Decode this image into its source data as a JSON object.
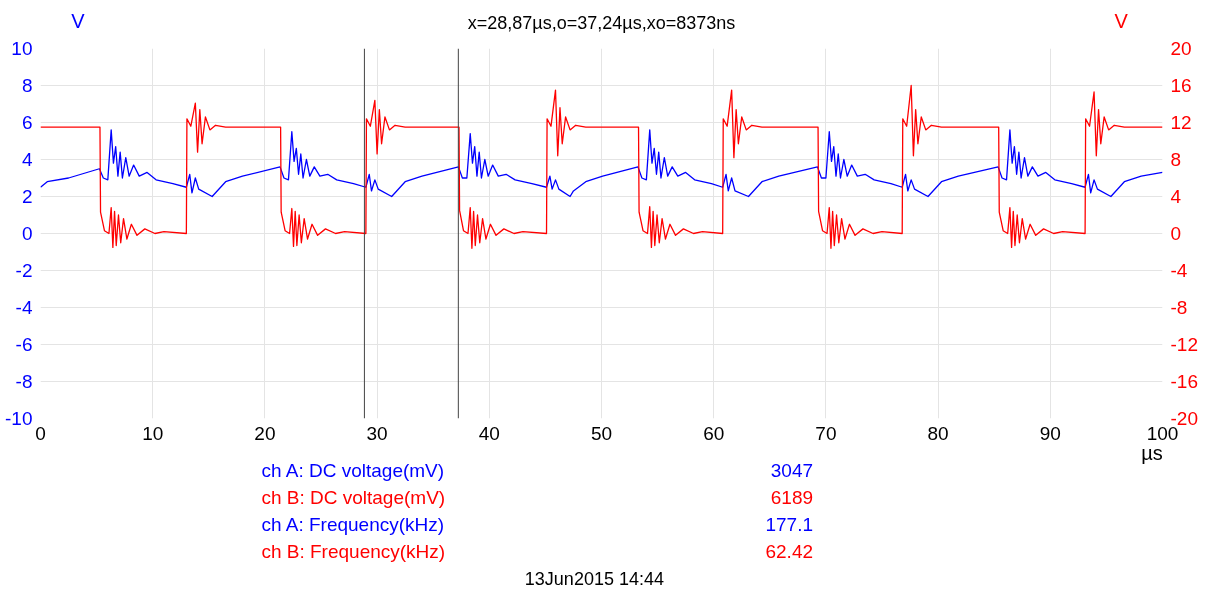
{
  "chart_data": {
    "type": "line",
    "title": "x=28,87µs,o=37,24µs,xo=8373ns",
    "xlabel": "µs",
    "ylabel": "V",
    "y2label": "V",
    "xlim": [
      0,
      100
    ],
    "xticks": [
      0,
      10,
      20,
      30,
      40,
      50,
      60,
      70,
      80,
      90,
      100
    ],
    "ylim": [
      -10,
      10
    ],
    "yticks": [
      -10,
      -8,
      -6,
      -4,
      -2,
      0,
      2,
      4,
      6,
      8,
      10
    ],
    "y2lim": [
      -20,
      20
    ],
    "y2ticks": [
      -20,
      -16,
      -12,
      -8,
      -4,
      0,
      4,
      8,
      12,
      16,
      20
    ],
    "grid": true,
    "line_style": "solid",
    "marker": "none",
    "ref_lines": [
      {
        "axis": "x",
        "value": 28.87,
        "label": null,
        "color": "#444444"
      },
      {
        "axis": "x",
        "value": 37.24,
        "label": null,
        "color": "#444444"
      }
    ],
    "series": [
      {
        "color": "#0000ff",
        "x": [
          0,
          0.6,
          2.5,
          5.25,
          5.6,
          6.0,
          6.3,
          6.5,
          6.7,
          6.9,
          7.1,
          7.3,
          7.6,
          7.9,
          8.3,
          8.8,
          9.5,
          10.3,
          11.8,
          13.0,
          13.3,
          13.5,
          13.8,
          14.1,
          15.3,
          16.5,
          18.0,
          21.35,
          21.7,
          22.1,
          22.4,
          22.6,
          22.8,
          23.0,
          23.2,
          23.4,
          23.7,
          24.0,
          24.4,
          24.9,
          25.6,
          26.4,
          27.9,
          29.0,
          29.3,
          29.5,
          29.8,
          30.1,
          31.3,
          32.5,
          34.0,
          37.25,
          37.6,
          38.0,
          38.3,
          38.5,
          38.7,
          38.9,
          39.1,
          39.3,
          39.6,
          39.9,
          40.3,
          40.8,
          41.5,
          42.3,
          43.8,
          45.1,
          45.4,
          45.6,
          45.9,
          46.2,
          47.2,
          47.5,
          48.6,
          50.1,
          53.25,
          53.6,
          54.0,
          54.3,
          54.5,
          54.7,
          54.9,
          55.1,
          55.3,
          55.6,
          55.9,
          56.3,
          56.8,
          57.5,
          58.3,
          59.8,
          60.8,
          61.1,
          61.3,
          61.6,
          61.9,
          63.1,
          64.3,
          65.8,
          69.25,
          69.6,
          70.0,
          70.3,
          70.5,
          70.7,
          70.9,
          71.1,
          71.3,
          71.6,
          71.9,
          72.3,
          72.8,
          73.5,
          74.3,
          75.8,
          76.8,
          77.1,
          77.3,
          77.6,
          77.9,
          79.1,
          80.3,
          81.8,
          85.35,
          85.7,
          86.1,
          86.4,
          86.6,
          86.8,
          87.0,
          87.2,
          87.4,
          87.7,
          88.0,
          88.4,
          88.9,
          89.6,
          90.4,
          91.9,
          93.1,
          93.4,
          93.6,
          93.9,
          94.2,
          95.4,
          96.6,
          98.1,
          100
        ],
        "values": [
          2.5,
          2.8,
          3.0,
          3.5,
          3.0,
          2.9,
          5.6,
          3.8,
          4.7,
          3.1,
          4.4,
          3.0,
          4.1,
          3.1,
          3.7,
          3.1,
          3.3,
          2.9,
          2.7,
          2.5,
          3.2,
          2.2,
          3.0,
          2.4,
          2.0,
          2.8,
          3.1,
          3.6,
          3.0,
          2.9,
          5.5,
          3.9,
          4.6,
          3.2,
          4.3,
          3.0,
          4.0,
          3.1,
          3.6,
          3.1,
          3.2,
          2.9,
          2.7,
          2.5,
          3.2,
          2.3,
          2.9,
          2.4,
          2.0,
          2.8,
          3.1,
          3.6,
          3.0,
          3.0,
          5.4,
          3.8,
          4.7,
          3.1,
          4.4,
          3.0,
          4.0,
          3.1,
          3.7,
          3.1,
          3.2,
          2.9,
          2.7,
          2.5,
          3.1,
          2.4,
          2.9,
          2.4,
          2.0,
          2.3,
          2.8,
          3.1,
          3.6,
          3.0,
          2.9,
          5.6,
          3.8,
          4.6,
          3.2,
          4.4,
          3.0,
          4.1,
          3.1,
          3.6,
          3.1,
          3.3,
          2.9,
          2.7,
          2.5,
          3.2,
          2.3,
          3.0,
          2.3,
          2.0,
          2.8,
          3.1,
          3.6,
          3.0,
          3.0,
          5.5,
          3.9,
          4.7,
          3.1,
          4.3,
          3.0,
          4.0,
          3.1,
          3.7,
          3.1,
          3.2,
          2.9,
          2.7,
          2.5,
          3.2,
          2.3,
          2.9,
          2.4,
          2.0,
          2.8,
          3.1,
          3.6,
          3.0,
          2.9,
          5.6,
          3.8,
          4.7,
          3.2,
          4.4,
          3.0,
          4.1,
          3.1,
          3.6,
          3.1,
          3.3,
          2.9,
          2.7,
          2.5,
          3.2,
          2.2,
          2.9,
          2.4,
          2.0,
          2.8,
          3.1,
          3.3
        ]
      },
      {
        "color": "#ff0000",
        "axis": "y2",
        "x": [
          0,
          5.3,
          5.35,
          5.7,
          6.1,
          6.3,
          6.45,
          6.6,
          6.75,
          6.95,
          7.15,
          7.4,
          7.7,
          8.1,
          8.6,
          9.3,
          10.2,
          11.0,
          13.0,
          13.05,
          13.4,
          13.8,
          14.0,
          14.2,
          14.4,
          14.7,
          15.1,
          15.6,
          16.5,
          21.4,
          21.45,
          21.8,
          22.2,
          22.4,
          22.55,
          22.7,
          22.85,
          23.05,
          23.25,
          23.5,
          23.8,
          24.2,
          24.7,
          25.4,
          26.3,
          27.1,
          29.0,
          29.05,
          29.4,
          29.8,
          30.0,
          30.2,
          30.4,
          30.7,
          31.1,
          31.6,
          32.5,
          37.3,
          37.35,
          37.7,
          38.1,
          38.3,
          38.45,
          38.6,
          38.75,
          38.95,
          39.15,
          39.4,
          39.7,
          40.1,
          40.6,
          41.3,
          42.2,
          43.0,
          45.1,
          45.15,
          45.5,
          45.9,
          46.1,
          46.3,
          46.5,
          46.8,
          47.2,
          47.7,
          48.6,
          53.3,
          53.35,
          53.7,
          54.1,
          54.3,
          54.45,
          54.6,
          54.75,
          54.95,
          55.15,
          55.4,
          55.7,
          56.1,
          56.6,
          57.3,
          58.2,
          59.0,
          60.8,
          60.85,
          61.2,
          61.6,
          61.8,
          62.0,
          62.2,
          62.5,
          62.9,
          63.4,
          64.3,
          69.3,
          69.35,
          69.7,
          70.1,
          70.3,
          70.45,
          70.6,
          70.75,
          70.95,
          71.15,
          71.4,
          71.7,
          72.1,
          72.6,
          73.3,
          74.2,
          75.0,
          76.8,
          76.85,
          77.2,
          77.6,
          77.8,
          78.0,
          78.2,
          78.5,
          78.9,
          79.4,
          80.3,
          85.4,
          85.45,
          85.8,
          86.2,
          86.4,
          86.55,
          86.7,
          86.85,
          87.05,
          87.25,
          87.5,
          87.8,
          88.2,
          88.7,
          89.4,
          90.3,
          91.1,
          93.1,
          93.15,
          93.5,
          93.9,
          94.1,
          94.3,
          94.5,
          94.8,
          95.2,
          95.7,
          96.6,
          100
        ],
        "values": [
          11.5,
          11.5,
          2.3,
          0.3,
          0,
          2.8,
          -1.5,
          2.4,
          -1.3,
          2.0,
          -1.0,
          1.6,
          -0.6,
          1.0,
          -0.2,
          0.5,
          0,
          0.2,
          0,
          12.4,
          11.6,
          14.1,
          8.8,
          13.4,
          9.7,
          12.6,
          11.2,
          11.7,
          11.5,
          11.5,
          2.3,
          0.3,
          0,
          2.7,
          -1.4,
          2.4,
          -1.3,
          2.0,
          -1.0,
          1.6,
          -0.6,
          1.0,
          -0.2,
          0.5,
          0,
          0.2,
          0,
          12.4,
          11.6,
          14.4,
          8.6,
          13.4,
          9.7,
          12.6,
          11.2,
          11.7,
          11.5,
          11.5,
          2.5,
          0.3,
          0,
          2.8,
          -1.6,
          2.4,
          -1.3,
          2.0,
          -1.0,
          1.6,
          -0.6,
          1.0,
          -0.2,
          0.5,
          0,
          0.2,
          0,
          12.4,
          11.6,
          15.5,
          8.4,
          13.6,
          9.7,
          12.6,
          11.2,
          11.7,
          11.5,
          11.5,
          2.3,
          0.3,
          0,
          2.9,
          -1.5,
          2.4,
          -1.3,
          2.0,
          -1.0,
          1.6,
          -0.6,
          1.0,
          -0.2,
          0.5,
          0,
          0.2,
          0,
          12.4,
          11.6,
          15.5,
          8.2,
          13.4,
          9.7,
          12.6,
          11.2,
          11.7,
          11.5,
          11.5,
          2.4,
          0.3,
          0,
          2.8,
          -1.6,
          2.4,
          -1.3,
          2.0,
          -1.0,
          1.6,
          -0.6,
          1.0,
          -0.2,
          0.5,
          0,
          0.2,
          0,
          12.4,
          11.6,
          16.0,
          8.4,
          13.4,
          9.7,
          12.6,
          11.2,
          11.7,
          11.5,
          11.5,
          2.3,
          0.3,
          0,
          2.8,
          -1.5,
          2.4,
          -1.3,
          2.0,
          -1.0,
          1.6,
          -0.6,
          1.0,
          -0.2,
          0.5,
          0,
          0.2,
          0,
          12.4,
          11.6,
          15.3,
          8.4,
          13.4,
          9.7,
          12.6,
          11.2,
          11.7,
          11.5,
          11.5
        ]
      }
    ],
    "annotations": [
      "ch A: DC voltage(mV)",
      "3047",
      "ch B: DC voltage(mV)",
      "6189",
      "ch A: Frequency(kHz)",
      "177.1",
      "ch B: Frequency(kHz)",
      "62.42",
      "13Jun2015  14:44"
    ]
  }
}
